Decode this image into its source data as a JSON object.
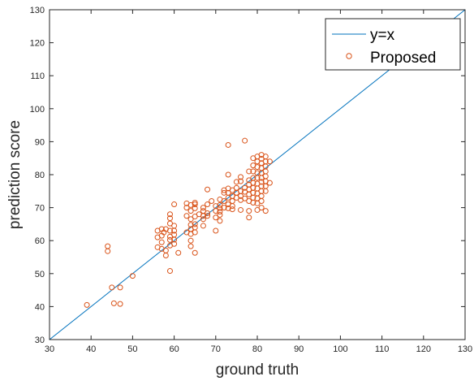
{
  "chart_data": {
    "type": "scatter",
    "title": "",
    "xlabel": "ground truth",
    "ylabel": "prediction score",
    "xlim": [
      30,
      130
    ],
    "ylim": [
      30,
      130
    ],
    "xticks": [
      "30",
      "40",
      "50",
      "60",
      "70",
      "80",
      "90",
      "100",
      "110",
      "120",
      "130"
    ],
    "yticks": [
      "30",
      "40",
      "50",
      "60",
      "70",
      "80",
      "90",
      "100",
      "110",
      "120",
      "130"
    ],
    "grid": false,
    "legend_position": "top-right",
    "colors": {
      "line": "#0072BD",
      "points": "#D95319",
      "axes": "#262626"
    },
    "series": [
      {
        "name": "y=x",
        "kind": "line",
        "x": [
          30,
          130
        ],
        "y": [
          30,
          130
        ]
      },
      {
        "name": "Proposed",
        "kind": "scatter",
        "marker": "circle-open",
        "points": [
          [
            39,
            40.5
          ],
          [
            44,
            58.3
          ],
          [
            44,
            56.8
          ],
          [
            45,
            45.8
          ],
          [
            45.5,
            41
          ],
          [
            47,
            45.8
          ],
          [
            47,
            40.8
          ],
          [
            50,
            49.3
          ],
          [
            56,
            63
          ],
          [
            56,
            61
          ],
          [
            56,
            58
          ],
          [
            57,
            63.5
          ],
          [
            57,
            61.5
          ],
          [
            57,
            59.5
          ],
          [
            57,
            57.5
          ],
          [
            57.5,
            62.5
          ],
          [
            58,
            57
          ],
          [
            58,
            55.5
          ],
          [
            58,
            63.5
          ],
          [
            59,
            68
          ],
          [
            59,
            66.8
          ],
          [
            59,
            65.2
          ],
          [
            59,
            63
          ],
          [
            59,
            61.2
          ],
          [
            59,
            60.2
          ],
          [
            59,
            58.5
          ],
          [
            59,
            50.8
          ],
          [
            60,
            71
          ],
          [
            60,
            64.5
          ],
          [
            60,
            63
          ],
          [
            60,
            61.8
          ],
          [
            60,
            60.3
          ],
          [
            60,
            59
          ],
          [
            61,
            56.3
          ],
          [
            63,
            71.3
          ],
          [
            63,
            70
          ],
          [
            63,
            67.5
          ],
          [
            63,
            62.5
          ],
          [
            64,
            70.8
          ],
          [
            64,
            69
          ],
          [
            64,
            66.5
          ],
          [
            64,
            64.8
          ],
          [
            64,
            63.5
          ],
          [
            64,
            62
          ],
          [
            64,
            60
          ],
          [
            64,
            58.3
          ],
          [
            65,
            71.5
          ],
          [
            65,
            71
          ],
          [
            65,
            69.8
          ],
          [
            65,
            67.3
          ],
          [
            65,
            65
          ],
          [
            65,
            64
          ],
          [
            65,
            62.5
          ],
          [
            65,
            56.3
          ],
          [
            66,
            68
          ],
          [
            67,
            70
          ],
          [
            67,
            69
          ],
          [
            67,
            67.5
          ],
          [
            67,
            66.5
          ],
          [
            67,
            64.5
          ],
          [
            68,
            75.5
          ],
          [
            68,
            71
          ],
          [
            68,
            68.3
          ],
          [
            68,
            67.5
          ],
          [
            69,
            72
          ],
          [
            70,
            70.5
          ],
          [
            70,
            69
          ],
          [
            70,
            67
          ],
          [
            70,
            63
          ],
          [
            71,
            72.5
          ],
          [
            71,
            70.8
          ],
          [
            71,
            69.8
          ],
          [
            71,
            68.8
          ],
          [
            71,
            67.8
          ],
          [
            71,
            66
          ],
          [
            72,
            75.3
          ],
          [
            72,
            74.5
          ],
          [
            72,
            72
          ],
          [
            72,
            70
          ],
          [
            73,
            89
          ],
          [
            73,
            80
          ],
          [
            73,
            75.8
          ],
          [
            73,
            74.5
          ],
          [
            73,
            73
          ],
          [
            73,
            71
          ],
          [
            73,
            69.8
          ],
          [
            74,
            75.3
          ],
          [
            74,
            73.5
          ],
          [
            74,
            72
          ],
          [
            74,
            70.5
          ],
          [
            74,
            69.5
          ],
          [
            75,
            77.8
          ],
          [
            75,
            76
          ],
          [
            75,
            74.5
          ],
          [
            75,
            73
          ],
          [
            76,
            79.3
          ],
          [
            76,
            78
          ],
          [
            76,
            75
          ],
          [
            76,
            73.5
          ],
          [
            76,
            72.3
          ],
          [
            76,
            69.3
          ],
          [
            77,
            90.3
          ],
          [
            77,
            76
          ],
          [
            77,
            74.8
          ],
          [
            77,
            72.8
          ],
          [
            78,
            81
          ],
          [
            78,
            78.3
          ],
          [
            78,
            77
          ],
          [
            78,
            75.5
          ],
          [
            78,
            74
          ],
          [
            78,
            72
          ],
          [
            78,
            69
          ],
          [
            78,
            67
          ],
          [
            79,
            85
          ],
          [
            79,
            82.8
          ],
          [
            79,
            81
          ],
          [
            79,
            79
          ],
          [
            79,
            77.5
          ],
          [
            79,
            76
          ],
          [
            79,
            74.5
          ],
          [
            79,
            73
          ],
          [
            79,
            71.5
          ],
          [
            80,
            85.5
          ],
          [
            80,
            84
          ],
          [
            80,
            82.3
          ],
          [
            80,
            80.5
          ],
          [
            80,
            79
          ],
          [
            80,
            77.3
          ],
          [
            80,
            75.8
          ],
          [
            80,
            74.3
          ],
          [
            80,
            72.8
          ],
          [
            80,
            71.3
          ],
          [
            80,
            69.3
          ],
          [
            81,
            86
          ],
          [
            81,
            84.8
          ],
          [
            81,
            83.5
          ],
          [
            81,
            82
          ],
          [
            81,
            80.5
          ],
          [
            81,
            79
          ],
          [
            81,
            77.8
          ],
          [
            81,
            76.5
          ],
          [
            81,
            75
          ],
          [
            81,
            73.5
          ],
          [
            81,
            72
          ],
          [
            81,
            70
          ],
          [
            82,
            85.5
          ],
          [
            82,
            84
          ],
          [
            82,
            82.5
          ],
          [
            82,
            81
          ],
          [
            82,
            79.5
          ],
          [
            82,
            78
          ],
          [
            82,
            76.5
          ],
          [
            82,
            75
          ],
          [
            82,
            69
          ],
          [
            83,
            84
          ],
          [
            83,
            77.5
          ]
        ]
      }
    ]
  }
}
